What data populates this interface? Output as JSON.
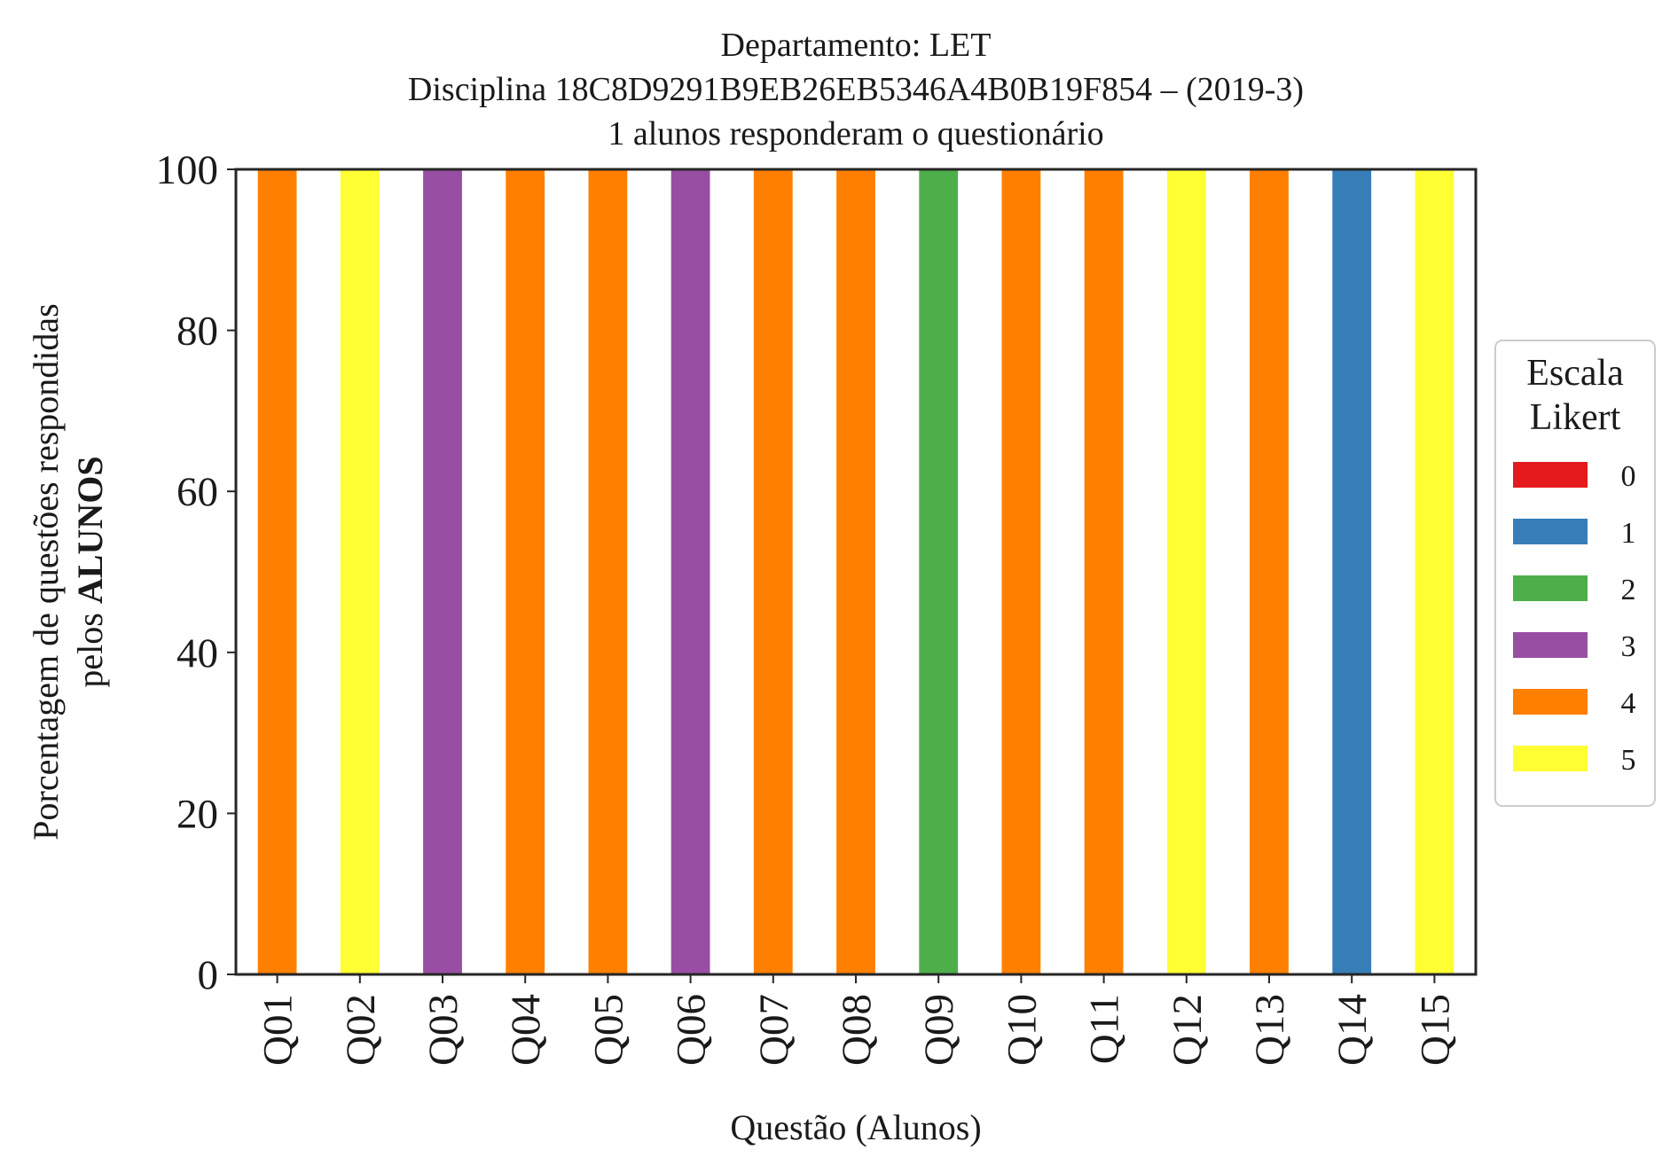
{
  "chart_data": {
    "type": "bar",
    "stacked": true,
    "title_lines": [
      "Departamento: LET",
      "Disciplina 18C8D9291B9EB26EB5346A4B0B19F854 – (2019-3)",
      "1 alunos responderam o questionário"
    ],
    "xlabel": "Questão (Alunos)",
    "ylabel_line1": "Porcentagem de questões respondidas",
    "ylabel_line2_prefix": "pelos ",
    "ylabel_line2_bold": "ALUNOS",
    "ylim": [
      0,
      100
    ],
    "yticks": [
      0,
      20,
      40,
      60,
      80,
      100
    ],
    "categories": [
      "Q01",
      "Q02",
      "Q03",
      "Q04",
      "Q05",
      "Q06",
      "Q07",
      "Q08",
      "Q09",
      "Q10",
      "Q11",
      "Q12",
      "Q13",
      "Q14",
      "Q15"
    ],
    "series": [
      {
        "name": "0",
        "color": "#e41a1c",
        "values": [
          0,
          0,
          0,
          0,
          0,
          0,
          0,
          0,
          0,
          0,
          0,
          0,
          0,
          0,
          0
        ]
      },
      {
        "name": "1",
        "color": "#377eb8",
        "values": [
          0,
          0,
          0,
          0,
          0,
          0,
          0,
          0,
          0,
          0,
          0,
          0,
          0,
          100,
          0
        ]
      },
      {
        "name": "2",
        "color": "#4daf4a",
        "values": [
          0,
          0,
          0,
          0,
          0,
          0,
          0,
          0,
          100,
          0,
          0,
          0,
          0,
          0,
          0
        ]
      },
      {
        "name": "3",
        "color": "#984ea3",
        "values": [
          0,
          0,
          100,
          0,
          0,
          100,
          0,
          0,
          0,
          0,
          0,
          0,
          0,
          0,
          0
        ]
      },
      {
        "name": "4",
        "color": "#ff7f00",
        "values": [
          100,
          0,
          0,
          100,
          100,
          0,
          100,
          100,
          0,
          100,
          100,
          0,
          100,
          0,
          0
        ]
      },
      {
        "name": "5",
        "color": "#ffff33",
        "values": [
          0,
          100,
          0,
          0,
          0,
          0,
          0,
          0,
          0,
          0,
          0,
          100,
          0,
          0,
          100
        ]
      }
    ],
    "legend": {
      "title_lines": [
        "Escala",
        "Likert"
      ],
      "placement": "right-center"
    },
    "grid": false
  }
}
